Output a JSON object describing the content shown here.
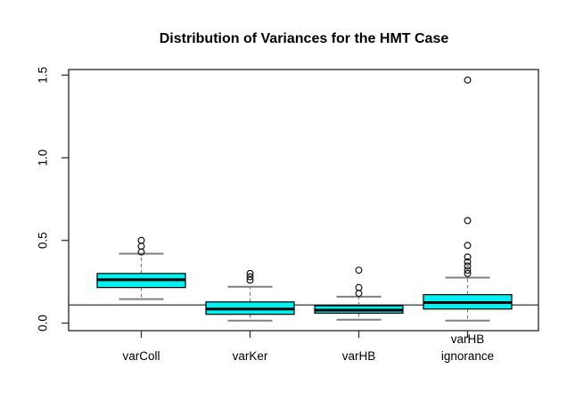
{
  "chart_data": {
    "type": "boxplot",
    "title": "Distribution of Variances for the HMT Case",
    "xlabel": "",
    "ylabel": "",
    "ylim": [
      -0.04,
      1.53
    ],
    "y_ticks": [
      0.0,
      0.5,
      1.0,
      1.5
    ],
    "y_tick_labels": [
      "0.0",
      "0.5",
      "1.0",
      "1.5"
    ],
    "grid": false,
    "legend": "none",
    "reference_line_y": 0.11,
    "colors": {
      "box_fill": "#00EFEF",
      "box_border": "#000000",
      "median": "#000000",
      "whisker": "#808080",
      "outlier_stroke": "#000000",
      "reference_line": "#000000",
      "frame": "#333333",
      "tick": "#333333",
      "text": "#000000",
      "background": "#ffffff"
    },
    "groups": [
      {
        "label": "varColl",
        "label_lines": [
          "varColl"
        ],
        "whisker_low": 0.145,
        "q1": 0.215,
        "median": 0.262,
        "q3": 0.3,
        "whisker_high": 0.42,
        "outliers": [
          0.43,
          0.465,
          0.5
        ]
      },
      {
        "label": "varKer",
        "label_lines": [
          "varKer"
        ],
        "whisker_low": 0.015,
        "q1": 0.053,
        "median": 0.085,
        "q3": 0.128,
        "whisker_high": 0.22,
        "outliers": [
          0.26,
          0.28,
          0.3
        ]
      },
      {
        "label": "varHB",
        "label_lines": [
          "varHB"
        ],
        "whisker_low": 0.02,
        "q1": 0.06,
        "median": 0.078,
        "q3": 0.105,
        "whisker_high": 0.16,
        "outliers": [
          0.18,
          0.215,
          0.32
        ]
      },
      {
        "label": "varHB ignorance",
        "label_lines": [
          "varHB",
          "ignorance"
        ],
        "whisker_low": 0.015,
        "q1": 0.085,
        "median": 0.124,
        "q3": 0.172,
        "whisker_high": 0.275,
        "outliers": [
          0.3,
          0.32,
          0.345,
          0.37,
          0.4,
          0.47,
          0.62,
          1.47
        ]
      }
    ]
  }
}
